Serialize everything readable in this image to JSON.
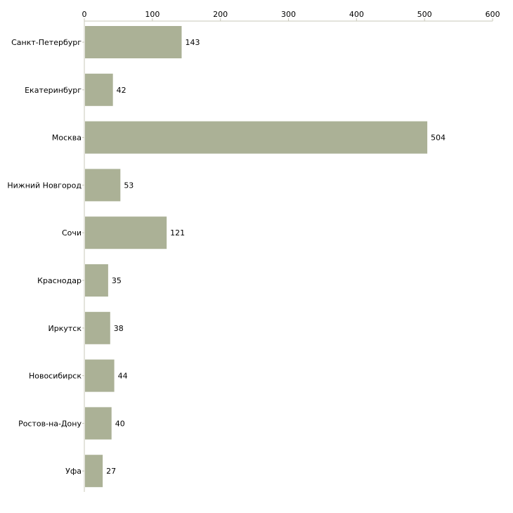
{
  "chart_data": {
    "type": "bar",
    "orientation": "horizontal",
    "title": "",
    "xlabel": "",
    "ylabel": "",
    "categories": [
      "Санкт-Петербург",
      "Екатеринбург",
      "Москва",
      "Нижний Новгород",
      "Сочи",
      "Краснодар",
      "Иркутск",
      "Новосибирск",
      "Ростов-на-Дону",
      "Уфа"
    ],
    "values": [
      143,
      42,
      504,
      53,
      121,
      35,
      38,
      44,
      40,
      27
    ],
    "xlim": [
      0,
      600
    ],
    "xticks": [
      0,
      100,
      200,
      300,
      400,
      500,
      600
    ],
    "axis_position": "top",
    "grid": false,
    "bar_color": "#abb196",
    "axis_color": "#c8c8b8"
  }
}
